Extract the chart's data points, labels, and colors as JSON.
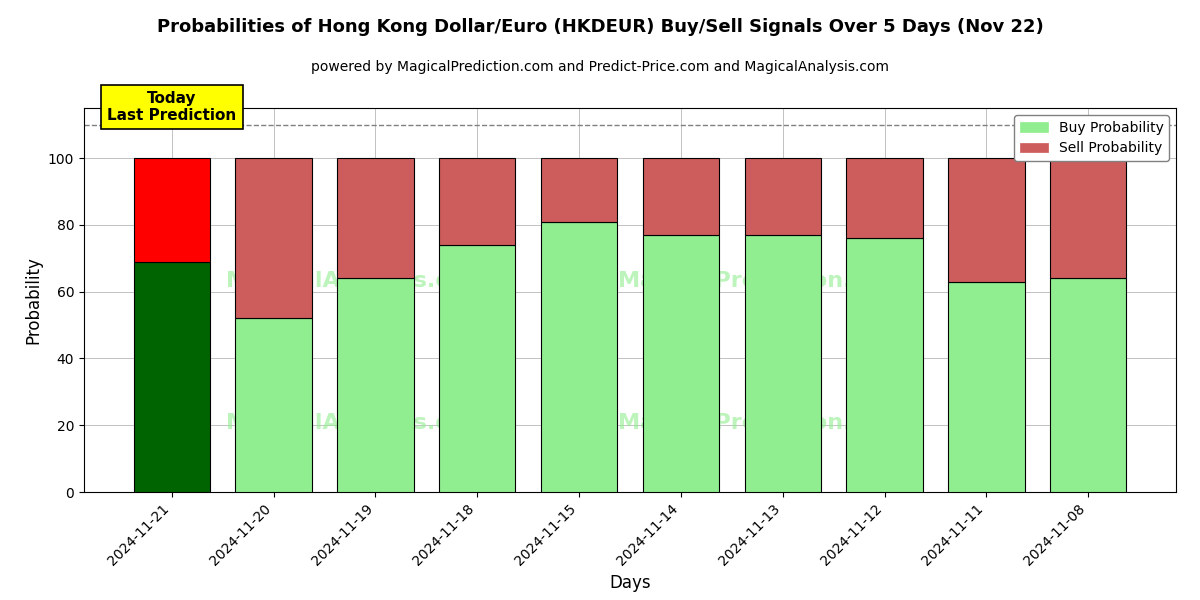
{
  "title": "Probabilities of Hong Kong Dollar/Euro (HKDEUR) Buy/Sell Signals Over 5 Days (Nov 22)",
  "subtitle": "powered by MagicalPrediction.com and Predict-Price.com and MagicalAnalysis.com",
  "xlabel": "Days",
  "ylabel": "Probability",
  "categories": [
    "2024-11-21",
    "2024-11-20",
    "2024-11-19",
    "2024-11-18",
    "2024-11-15",
    "2024-11-14",
    "2024-11-13",
    "2024-11-12",
    "2024-11-11",
    "2024-11-08"
  ],
  "buy_values": [
    69,
    52,
    64,
    74,
    81,
    77,
    77,
    76,
    63,
    64
  ],
  "sell_values": [
    31,
    48,
    36,
    26,
    19,
    23,
    23,
    24,
    37,
    36
  ],
  "today_buy_color": "#006400",
  "today_sell_color": "#FF0000",
  "buy_color": "#90EE90",
  "sell_color": "#CD5C5C",
  "today_label": "Today\nLast Prediction",
  "today_label_bg": "#FFFF00",
  "dashed_line_y": 110,
  "ylim": [
    0,
    115
  ],
  "yticks": [
    0,
    20,
    40,
    60,
    80,
    100
  ],
  "legend_buy_color": "#90EE90",
  "legend_sell_color": "#CD5C5C",
  "watermark_color": "#90EE90",
  "background_color": "#FFFFFF",
  "grid_color": "#AAAAAA"
}
